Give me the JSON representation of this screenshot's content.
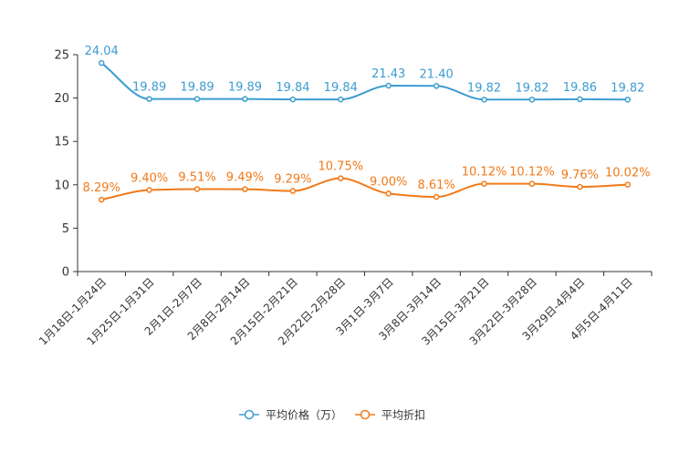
{
  "chart_data": {
    "type": "line",
    "title": "",
    "xlabel": "",
    "ylabel": "",
    "ylim": [
      0,
      25
    ],
    "yticks": [
      0,
      5,
      10,
      15,
      20,
      25
    ],
    "grid": false,
    "legend_position": "bottom-center",
    "categories": [
      "1月18日-1月24日",
      "1月25日-1月31日",
      "2月1日-2月7日",
      "2月8日-2月14日",
      "2月15日-2月21日",
      "2月22日-2月28日",
      "3月1日-3月7日",
      "3月8日-3月14日",
      "3月15日-3月21日",
      "3月22日-3月28日",
      "3月29日-4月4日",
      "4月5日-4月11日"
    ],
    "series": [
      {
        "name": "平均价格（万）",
        "color": "#3c9dd0",
        "values": [
          24.04,
          19.89,
          19.89,
          19.89,
          19.84,
          19.84,
          21.43,
          21.4,
          19.82,
          19.82,
          19.86,
          19.82
        ],
        "labels": [
          "24.04",
          "19.89",
          "19.89",
          "19.89",
          "19.84",
          "19.84",
          "21.43",
          "21.40",
          "19.82",
          "19.82",
          "19.86",
          "19.82"
        ]
      },
      {
        "name": "平均折扣",
        "color": "#f07a1a",
        "values": [
          8.29,
          9.4,
          9.51,
          9.49,
          9.29,
          10.75,
          9.0,
          8.61,
          10.12,
          10.12,
          9.76,
          10.02
        ],
        "labels": [
          "8.29%",
          "9.40%",
          "9.51%",
          "9.49%",
          "9.29%",
          "10.75%",
          "9.00%",
          "8.61%",
          "10.12%",
          "10.12%",
          "9.76%",
          "10.02%"
        ]
      }
    ]
  }
}
